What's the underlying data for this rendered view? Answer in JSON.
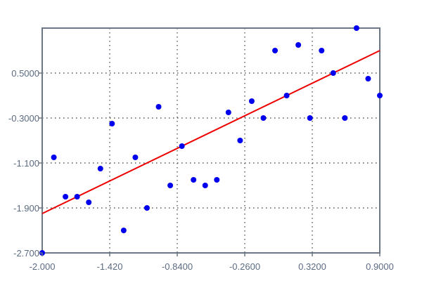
{
  "chart_data": {
    "type": "scatter",
    "title": "",
    "xlabel": "",
    "ylabel": "",
    "xlim": [
      -2.0,
      0.9
    ],
    "ylim": [
      -2.7,
      1.3
    ],
    "grid": true,
    "x_ticks": [
      -2.0,
      -1.42,
      -0.84,
      -0.26,
      0.32,
      0.9
    ],
    "x_tick_labels": [
      "-2.000",
      "-1.420",
      "-0.8400",
      "-0.2600",
      "0.3200",
      "0.9000"
    ],
    "y_ticks": [
      -2.7,
      -1.9,
      -1.1,
      -0.3,
      0.5
    ],
    "y_tick_labels": [
      "-2.700",
      "-1.900",
      "-1.100",
      "-0.3000",
      "0.5000"
    ],
    "series": [
      {
        "type": "scatter",
        "color": "#0000ee",
        "points": [
          {
            "x": -2.0,
            "y": -2.7
          },
          {
            "x": -1.9,
            "y": -1.0
          },
          {
            "x": -1.8,
            "y": -1.7
          },
          {
            "x": -1.7,
            "y": -1.7
          },
          {
            "x": -1.6,
            "y": -1.8
          },
          {
            "x": -1.5,
            "y": -1.2
          },
          {
            "x": -1.4,
            "y": -0.4
          },
          {
            "x": -1.3,
            "y": -2.3
          },
          {
            "x": -1.2,
            "y": -1.0
          },
          {
            "x": -1.1,
            "y": -1.9
          },
          {
            "x": -1.0,
            "y": -0.1
          },
          {
            "x": -0.9,
            "y": -1.5
          },
          {
            "x": -0.8,
            "y": -0.8
          },
          {
            "x": -0.7,
            "y": -1.4
          },
          {
            "x": -0.6,
            "y": -1.5
          },
          {
            "x": -0.5,
            "y": -1.4
          },
          {
            "x": -0.4,
            "y": -0.2
          },
          {
            "x": -0.3,
            "y": -0.7
          },
          {
            "x": -0.2,
            "y": 0.0
          },
          {
            "x": -0.1,
            "y": -0.3
          },
          {
            "x": 0.0,
            "y": 0.9
          },
          {
            "x": 0.1,
            "y": 0.1
          },
          {
            "x": 0.2,
            "y": 1.0
          },
          {
            "x": 0.3,
            "y": -0.3
          },
          {
            "x": 0.4,
            "y": 0.9
          },
          {
            "x": 0.5,
            "y": 0.5
          },
          {
            "x": 0.6,
            "y": -0.3
          },
          {
            "x": 0.7,
            "y": 1.3
          },
          {
            "x": 0.8,
            "y": 0.4
          },
          {
            "x": 0.9,
            "y": 0.1
          }
        ]
      },
      {
        "type": "line",
        "color": "#ee0000",
        "points": [
          {
            "x": -2.0,
            "y": -2.0
          },
          {
            "x": 0.9,
            "y": 0.9
          }
        ]
      }
    ]
  }
}
